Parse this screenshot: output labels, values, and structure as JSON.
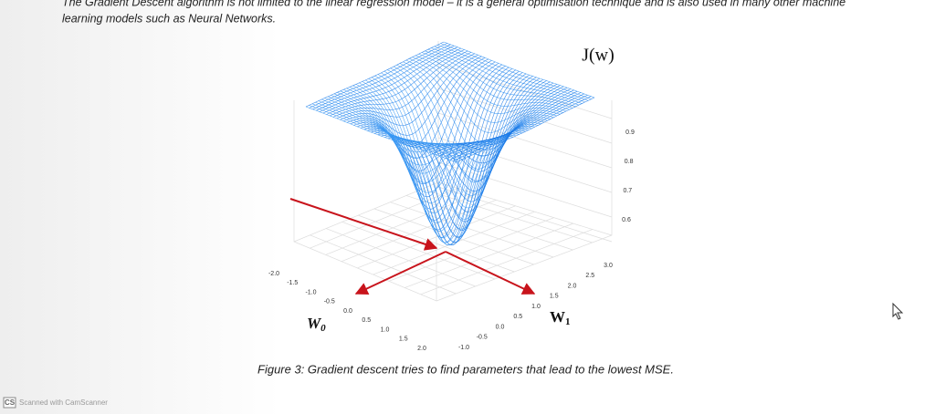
{
  "intro": [
    "The Gradient Descent algorithm is not limited to the linear regression model – it is a general optimisation technique and is also used in many other machine",
    "learning models such as Neural Networks."
  ],
  "figure": {
    "title": "J(w)",
    "x_label": {
      "letter": "W",
      "subscript": "0"
    },
    "y_label": {
      "letter": "W",
      "subscript": "1"
    },
    "x_ticks": [
      "-2.0",
      "-1.5",
      "-1.0",
      "-0.5",
      "0.0",
      "0.5",
      "1.0",
      "1.5",
      "2.0"
    ],
    "y_ticks": [
      "-1.0",
      "-0.5",
      "0.0",
      "0.5",
      "1.0",
      "1.5",
      "2.0",
      "2.5",
      "3.0"
    ],
    "z_ticks": [
      "0.9",
      "0.8",
      "0.7",
      "0.6"
    ],
    "caption": "Figure 3: Gradient descent tries to find parameters that lead to the lowest MSE."
  },
  "footer": {
    "logo": "CS",
    "text": "Scanned with CamScanner"
  }
}
